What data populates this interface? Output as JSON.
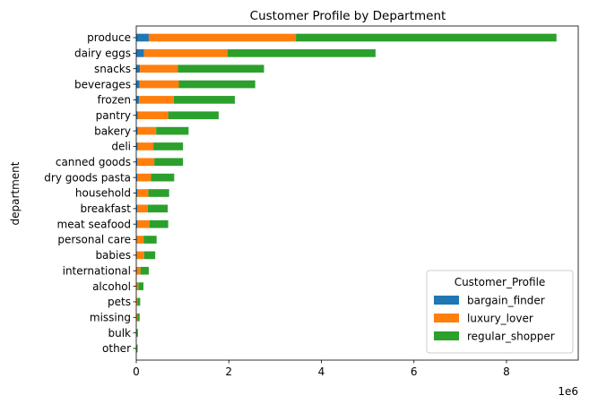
{
  "chart_data": {
    "type": "bar",
    "orientation": "horizontal",
    "stacked": true,
    "title": "Customer Profile by Department",
    "xlabel": "",
    "ylabel": "department",
    "x_offset_label": "1e6",
    "xlim": [
      0,
      9.55
    ],
    "xticks": [
      0,
      2,
      4,
      6,
      8
    ],
    "grid": false,
    "legend_placement": "lower-right",
    "legend_title": "Customer_Profile",
    "categories": [
      "produce",
      "dairy eggs",
      "snacks",
      "beverages",
      "frozen",
      "pantry",
      "bakery",
      "deli",
      "canned goods",
      "dry goods pasta",
      "household",
      "breakfast",
      "meat seafood",
      "personal care",
      "babies",
      "international",
      "alcohol",
      "pets",
      "missing",
      "bulk",
      "other"
    ],
    "series": [
      {
        "name": "bargain_finder",
        "color": "#1f77b4",
        "values": [
          0.27,
          0.17,
          0.08,
          0.07,
          0.06,
          0.03,
          0.03,
          0.03,
          0.02,
          0.02,
          0.02,
          0.02,
          0.02,
          0.01,
          0.01,
          0.01,
          0.005,
          0.005,
          0.003,
          0.001,
          0.001
        ]
      },
      {
        "name": "luxury_lover",
        "color": "#ff7f0e",
        "values": [
          3.18,
          1.8,
          0.82,
          0.85,
          0.75,
          0.66,
          0.4,
          0.34,
          0.37,
          0.3,
          0.24,
          0.23,
          0.27,
          0.15,
          0.16,
          0.08,
          0.04,
          0.02,
          0.02,
          0.005,
          0.003
        ]
      },
      {
        "name": "regular_shopper",
        "color": "#2ca02c",
        "values": [
          5.63,
          3.2,
          1.86,
          1.65,
          1.32,
          1.09,
          0.7,
          0.64,
          0.62,
          0.5,
          0.45,
          0.43,
          0.4,
          0.28,
          0.24,
          0.18,
          0.11,
          0.06,
          0.05,
          0.03,
          0.025
        ]
      }
    ]
  }
}
